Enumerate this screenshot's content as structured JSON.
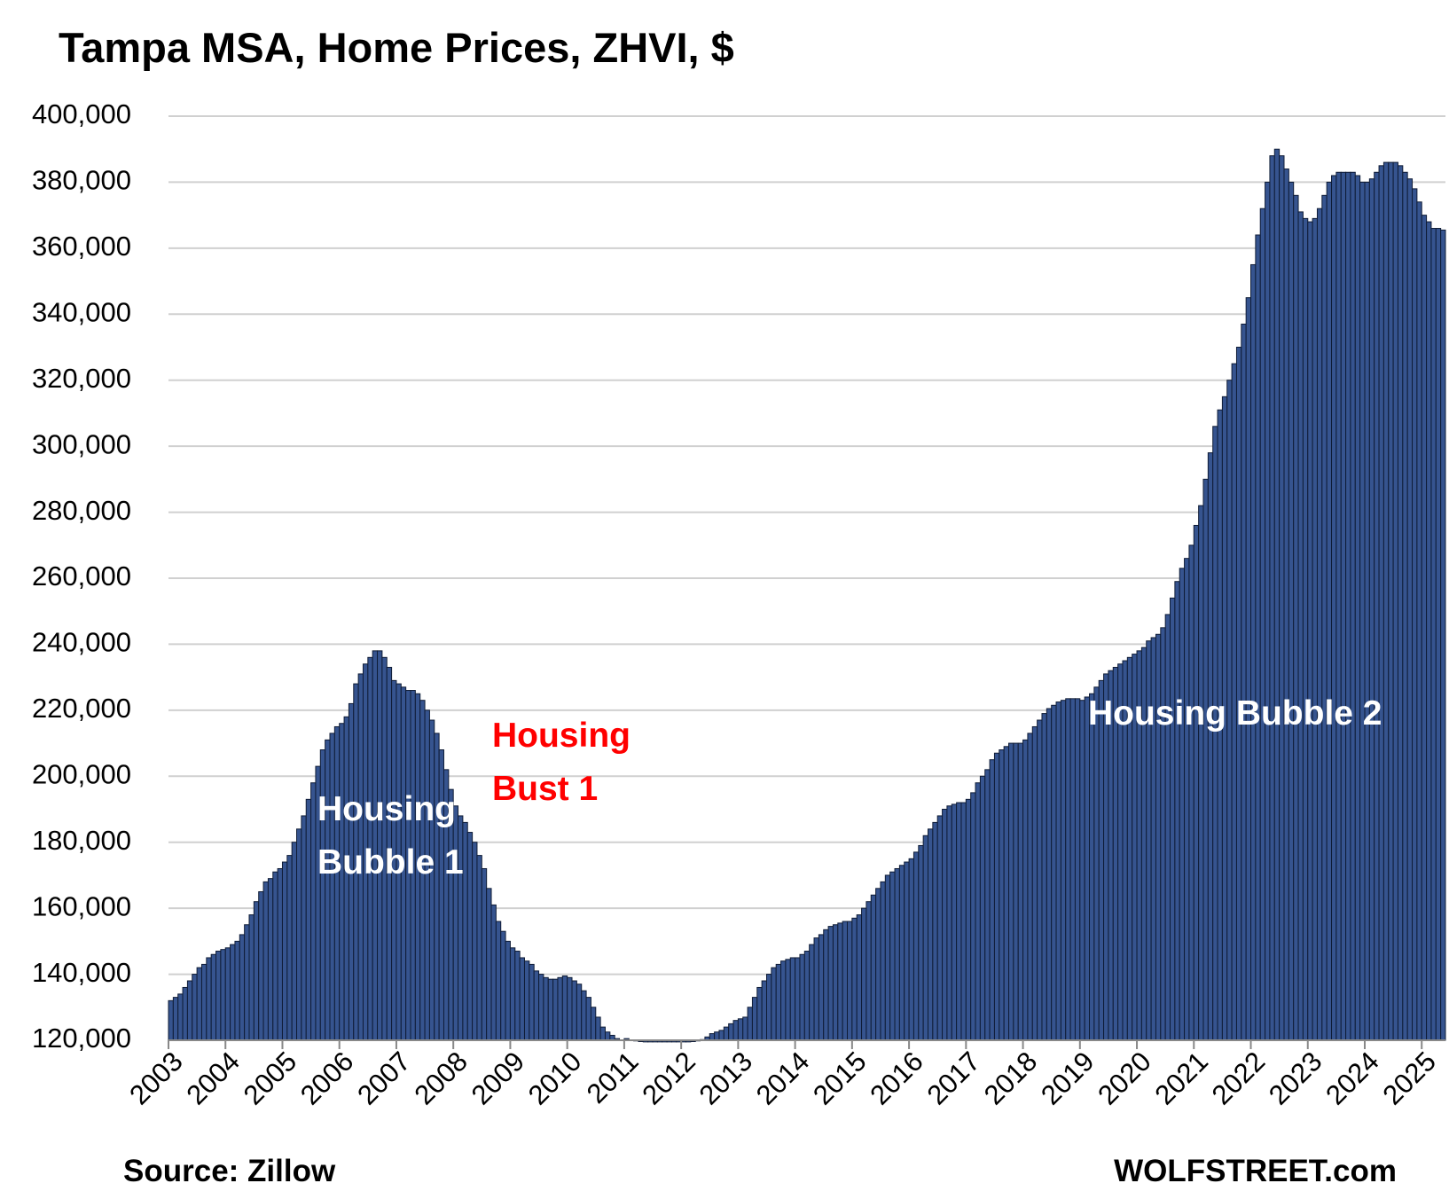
{
  "chart_data": {
    "type": "bar",
    "title": "Tampa MSA, Home Prices, ZHVI, $",
    "categories": [
      "2003",
      null,
      null,
      null,
      null,
      null,
      null,
      null,
      null,
      null,
      null,
      null,
      "2004",
      null,
      null,
      null,
      null,
      null,
      null,
      null,
      null,
      null,
      null,
      null,
      "2005",
      null,
      null,
      null,
      null,
      null,
      null,
      null,
      null,
      null,
      null,
      null,
      "2006",
      null,
      null,
      null,
      null,
      null,
      null,
      null,
      null,
      null,
      null,
      null,
      "2007",
      null,
      null,
      null,
      null,
      null,
      null,
      null,
      null,
      null,
      null,
      null,
      "2008",
      null,
      null,
      null,
      null,
      null,
      null,
      null,
      null,
      null,
      null,
      null,
      "2009",
      null,
      null,
      null,
      null,
      null,
      null,
      null,
      null,
      null,
      null,
      null,
      "2010",
      null,
      null,
      null,
      null,
      null,
      null,
      null,
      null,
      null,
      null,
      null,
      "2011",
      null,
      null,
      null,
      null,
      null,
      null,
      null,
      null,
      null,
      null,
      null,
      "2012",
      null,
      null,
      null,
      null,
      null,
      null,
      null,
      null,
      null,
      null,
      null,
      "2013",
      null,
      null,
      null,
      null,
      null,
      null,
      null,
      null,
      null,
      null,
      null,
      "2014",
      null,
      null,
      null,
      null,
      null,
      null,
      null,
      null,
      null,
      null,
      null,
      "2015",
      null,
      null,
      null,
      null,
      null,
      null,
      null,
      null,
      null,
      null,
      null,
      "2016",
      null,
      null,
      null,
      null,
      null,
      null,
      null,
      null,
      null,
      null,
      null,
      "2017",
      null,
      null,
      null,
      null,
      null,
      null,
      null,
      null,
      null,
      null,
      null,
      "2018",
      null,
      null,
      null,
      null,
      null,
      null,
      null,
      null,
      null,
      null,
      null,
      "2019",
      null,
      null,
      null,
      null,
      null,
      null,
      null,
      null,
      null,
      null,
      null,
      "2020",
      null,
      null,
      null,
      null,
      null,
      null,
      null,
      null,
      null,
      null,
      null,
      "2021",
      null,
      null,
      null,
      null,
      null,
      null,
      null,
      null,
      null,
      null,
      null,
      "2022",
      null,
      null,
      null,
      null,
      null,
      null,
      null,
      null,
      null,
      null,
      null,
      "2023",
      null,
      null,
      null,
      null,
      null,
      null,
      null,
      null,
      null,
      null,
      null,
      "2024",
      null,
      null,
      null,
      null,
      null,
      null,
      null,
      null,
      null,
      null,
      null,
      "2025",
      null,
      null,
      null,
      null
    ],
    "values": [
      132000,
      133000,
      134000,
      136000,
      138000,
      140000,
      142000,
      143000,
      145000,
      146000,
      147000,
      147500,
      148000,
      149000,
      150000,
      152000,
      155000,
      158000,
      162000,
      165000,
      168000,
      169000,
      171000,
      172000,
      174000,
      176000,
      180000,
      184000,
      188000,
      193000,
      198000,
      203000,
      208000,
      211000,
      213000,
      215000,
      216000,
      218000,
      222000,
      228000,
      231000,
      234000,
      236000,
      238000,
      238000,
      236000,
      233000,
      229000,
      228000,
      227000,
      226000,
      226000,
      225000,
      223000,
      220000,
      217000,
      213000,
      208000,
      202000,
      196000,
      191000,
      188000,
      186000,
      183000,
      180000,
      176000,
      172000,
      166000,
      161000,
      156000,
      153000,
      150000,
      148000,
      147000,
      145000,
      144000,
      143000,
      141000,
      140000,
      139000,
      138500,
      138500,
      139000,
      139500,
      139000,
      138000,
      137000,
      135000,
      133000,
      130000,
      127000,
      124000,
      122500,
      121500,
      120500,
      120000,
      120500,
      120000,
      119800,
      119600,
      119500,
      119500,
      119500,
      119500,
      119500,
      119500,
      119500,
      119500,
      119500,
      119500,
      119600,
      119800,
      120200,
      121000,
      122000,
      122500,
      123000,
      124000,
      125000,
      126000,
      126500,
      127000,
      130000,
      133000,
      136000,
      138000,
      140000,
      142000,
      143000,
      144000,
      144500,
      145000,
      145000,
      146000,
      147000,
      149000,
      151000,
      152000,
      153500,
      154500,
      155000,
      155500,
      156000,
      156000,
      157000,
      158000,
      160000,
      162000,
      164000,
      166000,
      168000,
      170000,
      171000,
      172000,
      173000,
      174000,
      175000,
      177000,
      179000,
      182000,
      184000,
      186000,
      188000,
      190000,
      191000,
      191500,
      192000,
      192000,
      193000,
      195000,
      198000,
      200000,
      202000,
      205000,
      207000,
      208000,
      209000,
      210000,
      210000,
      210000,
      211000,
      213000,
      215000,
      217000,
      219000,
      220500,
      221500,
      222500,
      223000,
      223500,
      223500,
      223500,
      223000,
      224000,
      225000,
      227000,
      229000,
      231000,
      232000,
      233000,
      234000,
      235000,
      236000,
      237000,
      238000,
      239000,
      241000,
      242000,
      243000,
      245000,
      249000,
      254000,
      259000,
      263000,
      266000,
      270000,
      276000,
      282000,
      290000,
      298000,
      306000,
      311000,
      315000,
      320000,
      325000,
      330000,
      337000,
      345000,
      355000,
      364000,
      372000,
      380000,
      388000,
      390000,
      388000,
      384000,
      380000,
      376000,
      371000,
      369000,
      368000,
      369000,
      372000,
      376000,
      380000,
      382000,
      383000,
      383000,
      383000,
      383000,
      382000,
      380000,
      380000,
      381000,
      383000,
      385000,
      386000,
      386000,
      386000,
      385000,
      383000,
      381000,
      378000,
      374000,
      370000,
      368000,
      366000,
      366000,
      365500
    ],
    "color": "#36548f",
    "grid": true,
    "ylim": [
      120000,
      400000
    ],
    "yticks": [
      {
        "value": 120000,
        "label": "120,000"
      },
      {
        "value": 140000,
        "label": "140,000"
      },
      {
        "value": 160000,
        "label": "160,000"
      },
      {
        "value": 180000,
        "label": "180,000"
      },
      {
        "value": 200000,
        "label": "200,000"
      },
      {
        "value": 220000,
        "label": "220,000"
      },
      {
        "value": 240000,
        "label": "240,000"
      },
      {
        "value": 260000,
        "label": "260,000"
      },
      {
        "value": 280000,
        "label": "280,000"
      },
      {
        "value": 300000,
        "label": "300,000"
      },
      {
        "value": 320000,
        "label": "320,000"
      },
      {
        "value": 340000,
        "label": "340,000"
      },
      {
        "value": 360000,
        "label": "360,000"
      },
      {
        "value": 380000,
        "label": "380,000"
      },
      {
        "value": 400000,
        "label": "400,000"
      }
    ],
    "annotations": [
      {
        "lines": [
          "Housing",
          "Bubble 1"
        ],
        "color": "#ffffff"
      },
      {
        "lines": [
          "Housing",
          "Bust 1"
        ],
        "color": "#ff0000"
      },
      {
        "lines": [
          "Housing Bubble 2"
        ],
        "color": "#ffffff"
      }
    ],
    "source": "Source: Zillow",
    "credit": "WOLFSTREET.com"
  }
}
